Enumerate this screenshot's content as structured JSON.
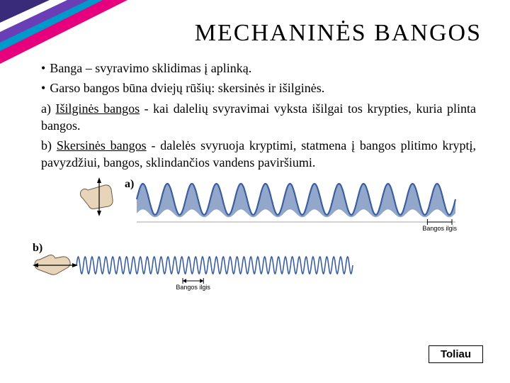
{
  "title": "MECHANINĖS BANGOS",
  "bullets": [
    "Banga – svyravimo sklidimas į aplinką.",
    "Garso bangos būna dviejų rūšių: skersinės ir išilginės."
  ],
  "para_a": {
    "prefix": "a) ",
    "underlined": "Išilginės bangos",
    "rest": " - kai dalelių svyravimai vyksta išilgai tos krypties, kuria plinta bangos."
  },
  "para_b": {
    "prefix": "b) ",
    "underlined": "Skersinės bangos",
    "rest": " - dalelės svyruoja kryptimi, statmena į bangos plitimo kryptį, pavyzdžiui, bangos, sklindančios vandens paviršiumi."
  },
  "diagram": {
    "label_a": "a)",
    "label_b": "b)",
    "wavelength_label": "Bangos ilgis",
    "wave_a": {
      "color": "#3a5fa0",
      "amplitude": 22,
      "cycles": 13,
      "stroke_width": 2.2,
      "fill_opacity": 0.55
    },
    "wave_b": {
      "color": "#3a5fa0",
      "amplitude": 12,
      "cycles": 40,
      "stroke_width": 1.6
    },
    "hand_fill": "#e8d4b8",
    "hand_stroke": "#6b5844",
    "axis_color": "#888888",
    "label_font_size": 9,
    "diagram_label_font_size": 16
  },
  "corner": {
    "colors": [
      "#e6007e",
      "#0099cc",
      "#6a3fb5",
      "#ffffff",
      "#3a2a7a"
    ]
  },
  "button_label": "Toliau"
}
